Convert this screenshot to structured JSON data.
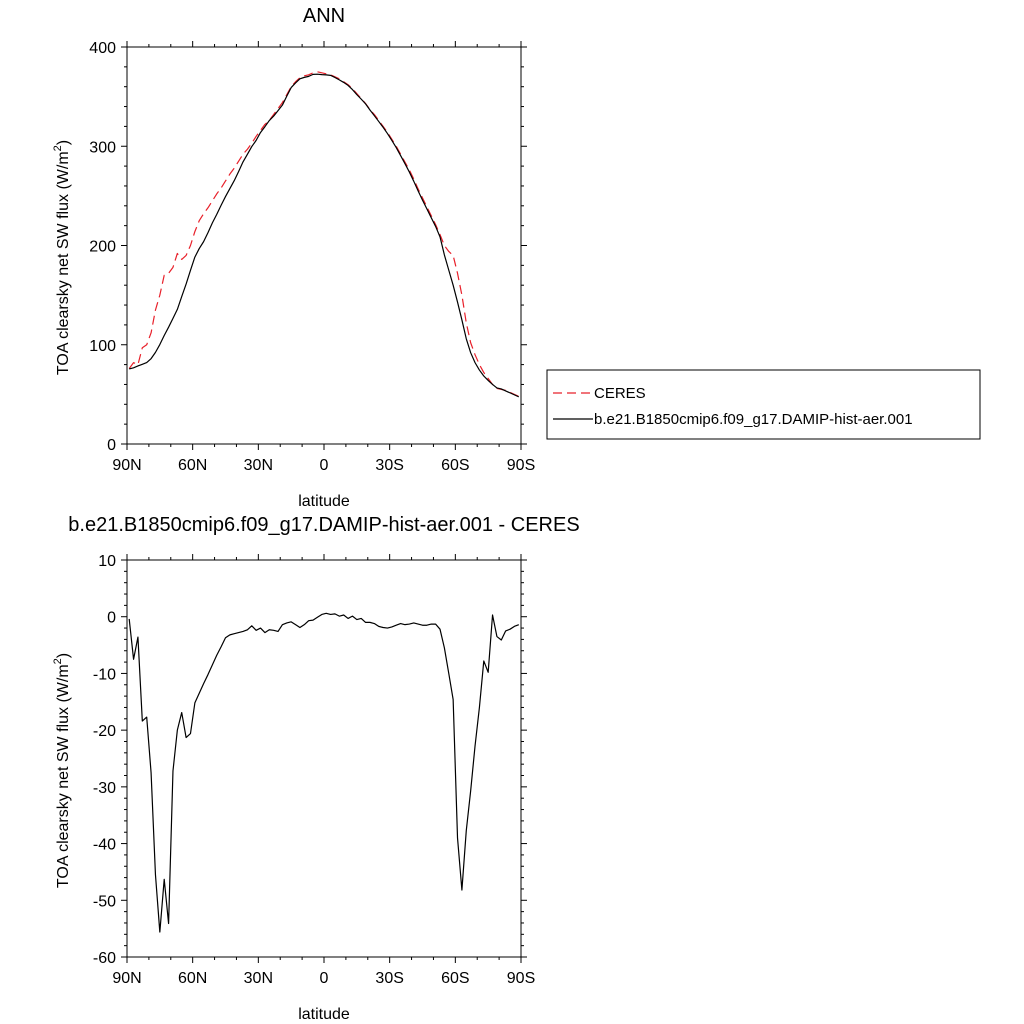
{
  "chart_data": [
    {
      "type": "line",
      "title": "ANN",
      "xlabel": "latitude",
      "ylabel": "TOA clearsky net SW flux (W/m",
      "ylabel_sup": "2",
      "ylabel_end": ")",
      "xlim": [
        90,
        -90
      ],
      "ylim": [
        0,
        400
      ],
      "x_ticks": [
        90,
        60,
        30,
        0,
        -30,
        -60,
        -90
      ],
      "x_tick_labels": [
        "90N",
        "60N",
        "30N",
        "0",
        "30S",
        "60S",
        "90S"
      ],
      "y_ticks": [
        0,
        100,
        200,
        300,
        400
      ],
      "y_tick_labels": [
        "0",
        "100",
        "200",
        "300",
        "400"
      ],
      "legend_position": "right",
      "series": [
        {
          "name": "CERES",
          "color": "#e8202a",
          "dash": "dashed",
          "x": [
            89,
            87,
            85,
            83,
            81,
            79,
            77,
            75,
            73,
            71,
            69,
            67,
            65,
            63,
            61,
            59,
            57,
            55,
            53,
            51,
            49,
            47,
            45,
            43,
            41,
            39,
            37,
            35,
            33,
            31,
            29,
            27,
            25,
            23,
            21,
            19,
            17,
            15,
            13,
            11,
            9,
            7,
            5,
            3,
            1,
            -1,
            -3,
            -5,
            -7,
            -9,
            -11,
            -13,
            -15,
            -17,
            -19,
            -21,
            -23,
            -25,
            -27,
            -29,
            -31,
            -33,
            -35,
            -37,
            -39,
            -41,
            -43,
            -45,
            -47,
            -49,
            -51,
            -53,
            -55,
            -57,
            -59,
            -61,
            -63,
            -65,
            -67,
            -69,
            -71,
            -73,
            -75,
            -77,
            -79,
            -81,
            -83,
            -85,
            -87,
            -89
          ],
          "values": [
            76,
            82,
            80,
            97,
            100,
            112,
            135,
            150,
            170,
            172,
            178,
            192,
            186,
            190,
            200,
            214,
            225,
            232,
            238,
            245,
            252,
            258,
            265,
            272,
            278,
            285,
            292,
            297,
            303,
            310,
            316,
            322,
            326,
            332,
            338,
            344,
            352,
            360,
            365,
            369,
            371,
            372,
            374,
            375,
            374,
            373,
            372,
            370,
            368,
            365,
            362,
            358,
            353,
            348,
            343,
            337,
            332,
            326,
            320,
            314,
            307,
            300,
            292,
            284,
            276,
            267,
            257,
            248,
            239,
            230,
            221,
            211,
            200,
            194,
            190,
            172,
            150,
            122,
            102,
            90,
            80,
            72,
            66,
            60,
            56,
            55,
            54,
            52,
            50,
            48
          ]
        },
        {
          "name": "b.e21.B1850cmip6.f09_g17.DAMIP-hist-aer.001",
          "color": "#000000",
          "dash": "solid",
          "x": [
            89,
            87,
            85,
            83,
            81,
            79,
            77,
            75,
            73,
            71,
            69,
            67,
            65,
            63,
            61,
            59,
            57,
            55,
            53,
            51,
            49,
            47,
            45,
            43,
            41,
            39,
            37,
            35,
            33,
            31,
            29,
            27,
            25,
            23,
            21,
            19,
            17,
            15,
            13,
            11,
            9,
            7,
            5,
            3,
            1,
            -1,
            -3,
            -5,
            -7,
            -9,
            -11,
            -13,
            -15,
            -17,
            -19,
            -21,
            -23,
            -25,
            -27,
            -29,
            -31,
            -33,
            -35,
            -37,
            -39,
            -41,
            -43,
            -45,
            -47,
            -49,
            -51,
            -53,
            -55,
            -57,
            -59,
            -61,
            -63,
            -65,
            -67,
            -69,
            -71,
            -73,
            -75,
            -77,
            -79,
            -81,
            -83,
            -85,
            -87,
            -89
          ],
          "values": [
            75.6,
            76.8,
            78.6,
            80.3,
            82.1,
            86.0,
            92.3,
            100.2,
            109.3,
            117.7,
            126.6,
            135.6,
            148.5,
            161.1,
            175.0,
            188.3,
            196.9,
            203.9,
            213.0,
            222.8,
            231.4,
            240.5,
            249.3,
            257.4,
            265.4,
            274.6,
            284.2,
            291.9,
            299.7,
            305.9,
            313.9,
            319.7,
            325.9,
            330.4,
            335.9,
            341.5,
            350.5,
            359.1,
            363.8,
            367.9,
            369.4,
            370.4,
            372.4,
            372.6,
            372.2,
            371.9,
            371.4,
            369.3,
            366.9,
            364.3,
            361.3,
            357.1,
            352.0,
            347.5,
            342.7,
            336.5,
            330.8,
            325.0,
            319.1,
            312.8,
            305.8,
            298.7,
            290.6,
            282.4,
            274.0,
            264.8,
            255.0,
            245.7,
            236.9,
            228.0,
            219.2,
            208.7,
            190.5,
            175.2,
            160.0,
            143.0,
            125.0,
            106.0,
            92.0,
            82.0,
            74.5,
            68.5,
            64.0,
            60.0,
            56.5,
            55.5,
            53.5,
            51.5,
            49.5,
            47.5
          ]
        }
      ]
    },
    {
      "type": "line",
      "title": "b.e21.B1850cmip6.f09_g17.DAMIP-hist-aer.001 - CERES",
      "xlabel": "latitude",
      "ylabel": "TOA clearsky net SW flux (W/m",
      "ylabel_sup": "2",
      "ylabel_end": ")",
      "xlim": [
        90,
        -90
      ],
      "ylim": [
        -60,
        10
      ],
      "x_ticks": [
        90,
        60,
        30,
        0,
        -30,
        -60,
        -90
      ],
      "x_tick_labels": [
        "90N",
        "60N",
        "30N",
        "0",
        "30S",
        "60S",
        "90S"
      ],
      "y_ticks": [
        -60,
        -50,
        -40,
        -30,
        -20,
        -10,
        0,
        10
      ],
      "y_tick_labels": [
        "-60",
        "-50",
        "-40",
        "-30",
        "-20",
        "-10",
        "0",
        "10"
      ],
      "series": [
        {
          "name": "",
          "color": "#000000",
          "dash": "solid",
          "x": [
            89,
            87,
            85,
            83,
            81,
            79,
            77,
            75,
            73,
            71,
            69,
            67,
            65,
            63,
            61,
            59,
            57,
            55,
            53,
            51,
            49,
            47,
            45,
            43,
            41,
            39,
            37,
            35,
            33,
            31,
            29,
            27,
            25,
            23,
            21,
            19,
            17,
            15,
            13,
            11,
            9,
            7,
            5,
            3,
            1,
            -1,
            -3,
            -5,
            -7,
            -9,
            -11,
            -13,
            -15,
            -17,
            -19,
            -21,
            -23,
            -25,
            -27,
            -29,
            -31,
            -33,
            -35,
            -37,
            -39,
            -41,
            -43,
            -45,
            -47,
            -49,
            -51,
            -53,
            -55,
            -57,
            -59,
            -61,
            -63,
            -65,
            -67,
            -69,
            -71,
            -73,
            -75,
            -77,
            -79,
            -81,
            -83,
            -85,
            -87,
            -89
          ],
          "values": [
            -0.4,
            -7.5,
            -3.6,
            -18.4,
            -17.7,
            -27.5,
            -45.5,
            -55.6,
            -46.3,
            -54.1,
            -27.2,
            -20.0,
            -16.9,
            -21.3,
            -20.6,
            -15.2,
            -13.5,
            -11.8,
            -10.2,
            -8.5,
            -6.8,
            -5.3,
            -3.7,
            -3.2,
            -3.0,
            -2.8,
            -2.6,
            -2.3,
            -1.6,
            -2.4,
            -2.0,
            -2.8,
            -2.3,
            -2.4,
            -2.6,
            -1.4,
            -1.1,
            -0.9,
            -1.4,
            -1.9,
            -1.4,
            -0.7,
            -0.6,
            -0.1,
            0.4,
            0.6,
            0.4,
            0.5,
            0.1,
            0.3,
            -0.3,
            0.1,
            -0.5,
            -0.3,
            -1.0,
            -1.0,
            -1.2,
            -1.7,
            -1.9,
            -2.0,
            -1.8,
            -1.5,
            -1.2,
            -1.4,
            -1.3,
            -1.1,
            -1.3,
            -1.5,
            -1.5,
            -1.3,
            -1.3,
            -2.2,
            -5.5,
            -10.0,
            -14.6,
            -39.0,
            -48.2,
            -37.7,
            -30.7,
            -22.8,
            -16.0,
            -7.8,
            -9.8,
            0.3,
            -3.5,
            -4.1,
            -2.5,
            -2.2,
            -1.7,
            -1.4
          ]
        }
      ]
    }
  ]
}
